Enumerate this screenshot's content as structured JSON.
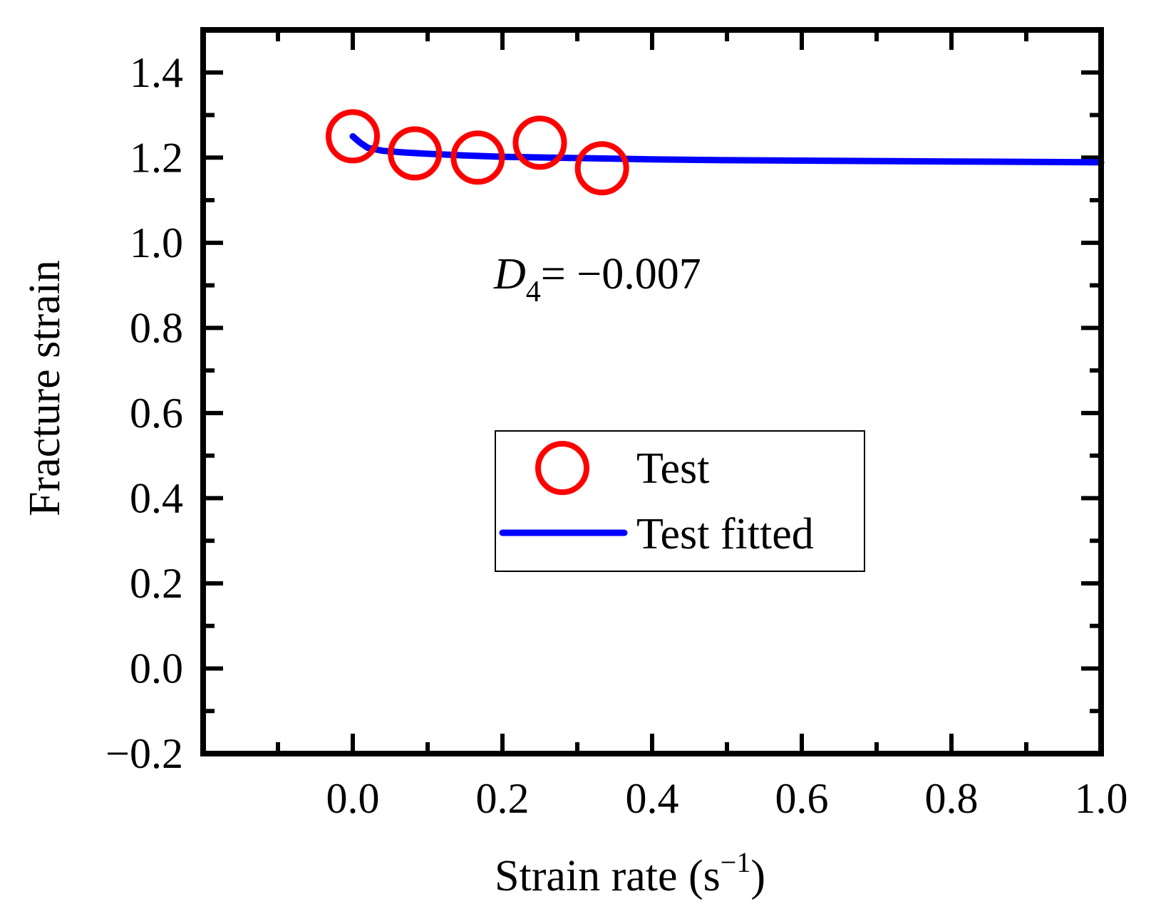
{
  "chart_data": {
    "type": "scatter",
    "title": "",
    "xlabel": "Strain rate (s",
    "xlabel_sup": "−1",
    "xlabel_close": ")",
    "ylabel": "Fracture strain",
    "xlim": [
      -0.2,
      1.0
    ],
    "ylim": [
      -0.2,
      1.5
    ],
    "xticks": [
      0.0,
      0.2,
      0.4,
      0.6,
      0.8,
      1.0
    ],
    "xtick_labels": [
      "0.0",
      "0.2",
      "0.4",
      "0.6",
      "0.8",
      "1.0"
    ],
    "yticks": [
      -0.2,
      0.0,
      0.2,
      0.4,
      0.6,
      0.8,
      1.0,
      1.2,
      1.4
    ],
    "ytick_labels": [
      "−0.2",
      "0.0",
      "0.2",
      "0.4",
      "0.6",
      "0.8",
      "1.0",
      "1.2",
      "1.4"
    ],
    "grid": false,
    "legend_position": "center-right",
    "annotation": {
      "symbol": "D",
      "subscript": "4",
      "text": "= −0.007"
    },
    "series": [
      {
        "name": "Test",
        "kind": "scatter",
        "marker": "open-circle",
        "color": "#ff0000",
        "x": [
          0.0,
          0.083,
          0.167,
          0.25,
          0.333
        ],
        "y": [
          1.25,
          1.21,
          1.2,
          1.235,
          1.175
        ]
      },
      {
        "name": "Test fitted",
        "kind": "line",
        "color": "#0000ff",
        "x": [
          0.0,
          0.01,
          0.02,
          0.04,
          0.07,
          0.1,
          0.15,
          0.2,
          0.3,
          0.4,
          0.5,
          0.6,
          0.7,
          0.8,
          0.9,
          1.0
        ],
        "y": [
          1.25,
          1.235,
          1.223,
          1.216,
          1.212,
          1.209,
          1.205,
          1.202,
          1.199,
          1.196,
          1.194,
          1.193,
          1.192,
          1.191,
          1.19,
          1.189
        ]
      }
    ]
  }
}
